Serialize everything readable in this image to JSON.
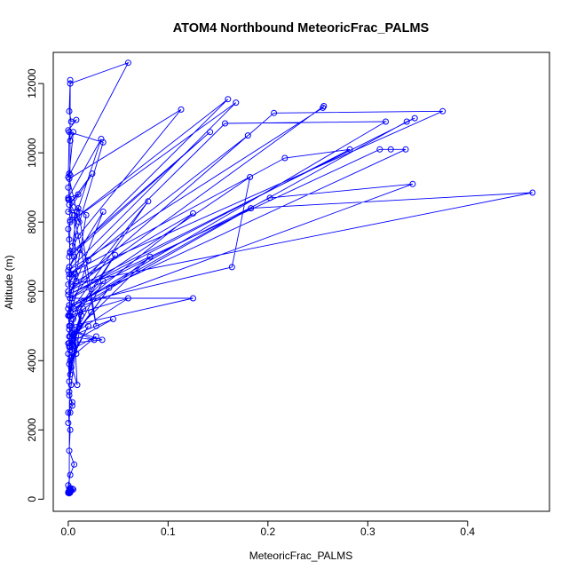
{
  "chart_data": {
    "type": "line",
    "title": "ATOM4 Northbound MeteoricFrac_PALMS",
    "xlabel": "MeteoricFrac_PALMS",
    "ylabel": "Altitude (m)",
    "xlim": [
      -0.015,
      0.482
    ],
    "ylim": [
      -350,
      12900
    ],
    "xticks": [
      0,
      0.1,
      0.2,
      0.3,
      0.4
    ],
    "xtick_labels": [
      "0.0",
      "0.1",
      "0.2",
      "0.3",
      "0.4"
    ],
    "yticks": [
      0,
      2000,
      4000,
      6000,
      8000,
      10000,
      12000
    ],
    "ytick_labels": [
      "0",
      "2000",
      "4000",
      "6000",
      "8000",
      "10000",
      "12000"
    ],
    "grid": false,
    "marker": "open-circle",
    "color": "#0000ff",
    "series": [
      {
        "x": [
          0.002,
          0.001,
          0.003,
          0.008,
          0.0,
          0.002,
          0.005,
          0.001,
          0.002,
          0.0,
          0.001,
          0.004,
          0.002,
          0.0,
          0.001,
          0.002,
          0.006,
          0.001,
          0.003,
          0.0,
          0.007,
          0.002,
          0.001,
          0.0,
          0.001,
          0.003,
          0.005,
          0.002,
          0.0,
          0.001,
          0.008,
          0.003,
          0.001,
          0.004,
          0.0,
          0.002,
          0.001,
          0.006,
          0.002,
          0.0,
          0.001,
          0.003,
          0.002,
          0.001,
          0.0,
          0.002,
          0.004,
          0.001,
          0.0,
          0.002,
          0.001,
          0.005,
          0.002,
          0.001,
          0.0,
          0.003,
          0.002,
          0.001,
          0.002,
          0.06,
          0.0,
          0.001,
          0.035,
          0.004,
          0.009,
          0.033,
          0.0,
          0.01,
          0.001,
          0.024,
          0.0,
          0.01,
          0.028,
          0.006,
          0.008,
          0.035,
          0.001,
          0.012,
          0.02,
          0.001,
          0.018,
          0.0,
          0.011,
          0.001,
          0.113,
          0.01,
          0.002,
          0.142,
          0.001,
          0.16,
          0.002,
          0.168,
          0.0,
          0.255,
          0.256,
          0.0,
          0.206,
          0.375,
          0.001,
          0.157,
          0.318,
          0.0,
          0.339,
          0.347,
          0.0,
          0.18,
          0.001,
          0.217,
          0.282,
          0.0,
          0.312,
          0.323,
          0.338,
          0.001,
          0.164,
          0.182,
          0.002,
          0.202,
          0.345,
          0.006,
          0.183,
          0.465,
          0.003,
          0.125,
          0.002,
          0.08,
          0.004,
          0.125,
          0.002,
          0.047,
          0.003,
          0.082,
          0.001,
          0.06,
          0.002,
          0.035,
          0.003,
          0.041,
          0.001,
          0.045,
          0.002,
          0.026,
          0.001,
          0.034,
          0.0,
          0.023,
          0.001,
          0.015,
          0.002,
          0.028,
          0.003,
          0.02,
          0.001,
          0.013,
          0.008,
          0.005,
          0.003,
          0.012,
          0.002,
          0.006,
          0.009,
          0.002,
          0.001,
          0.004,
          0.002,
          0.0
        ],
        "y": [
          12100,
          11200,
          10900,
          10950,
          10650,
          10350,
          10600,
          9400,
          9350,
          9000,
          8650,
          8200,
          8050,
          7800,
          7500,
          7150,
          7000,
          6700,
          6500,
          6200,
          6500,
          5800,
          5600,
          5300,
          5000,
          4800,
          4750,
          4400,
          4200,
          3400,
          4500,
          3300,
          3000,
          2800,
          2500,
          2000,
          1400,
          1000,
          700,
          400,
          300,
          250,
          200,
          220,
          180,
          260,
          300,
          210,
          190,
          240,
          170,
          280,
          320,
          230,
          200,
          260,
          190,
          210,
          12000,
          12600,
          9300,
          10600,
          10300,
          7300,
          8300,
          10400,
          8700,
          8800,
          8500,
          9400,
          8300,
          8400,
          5000,
          8200,
          6300,
          8300,
          6700,
          7200,
          6900,
          5300,
          8200,
          8650,
          8000,
          9250,
          11250,
          7600,
          7100,
          10600,
          7000,
          11550,
          8000,
          11450,
          6600,
          11300,
          11350,
          6000,
          11150,
          11200,
          6400,
          10850,
          10900,
          5500,
          10900,
          11000,
          6000,
          10500,
          6500,
          9850,
          10100,
          5900,
          10100,
          10100,
          10100,
          5600,
          6700,
          9300,
          5800,
          8700,
          9100,
          5500,
          8400,
          8850,
          6200,
          8250,
          5400,
          8600,
          5800,
          5800,
          5000,
          7050,
          5200,
          7000,
          4700,
          5800,
          5300,
          6300,
          4600,
          6100,
          4500,
          5200,
          4700,
          4600,
          4900,
          4600,
          4500,
          5400,
          4400,
          5500,
          4300,
          4700,
          4100,
          5000,
          3900,
          5300,
          4200,
          5200,
          3800,
          5400,
          3600,
          4900,
          3300,
          4000,
          3100,
          2700,
          2500,
          2200
        ]
      }
    ]
  }
}
